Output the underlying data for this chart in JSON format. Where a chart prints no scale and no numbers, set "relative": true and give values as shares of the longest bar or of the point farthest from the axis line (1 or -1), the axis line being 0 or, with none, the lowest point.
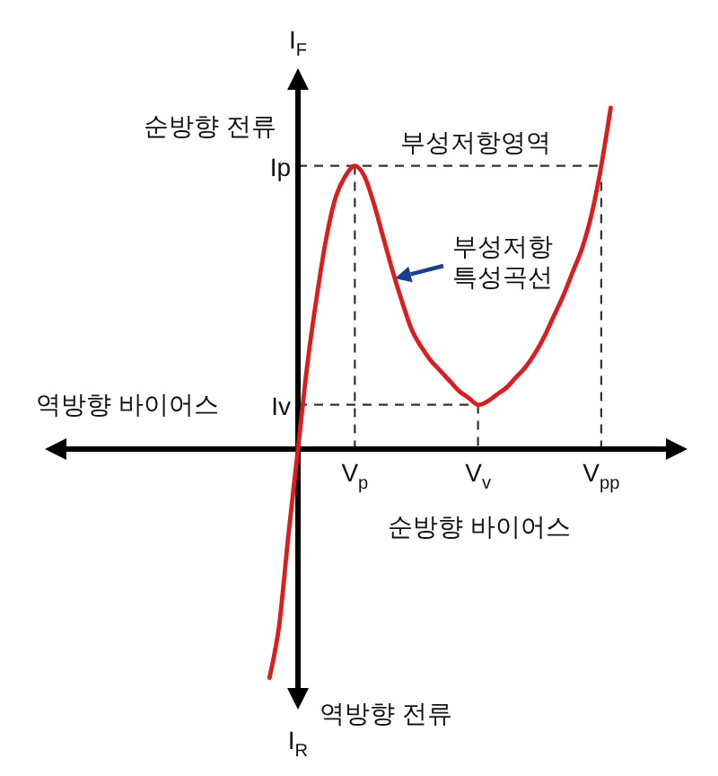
{
  "chart_data": {
    "type": "line",
    "relative": true,
    "xlabel": "순방향 바이어스",
    "ylabel": "I$_{F}$",
    "categories": [
      null,
      null,
      null,
      null,
      null,
      null,
      null,
      null,
      null,
      "V$_{p}$",
      null,
      null,
      null,
      null,
      null,
      null,
      null,
      null,
      null,
      null,
      null,
      null,
      "V$_{v}$",
      null,
      null,
      null,
      null,
      null,
      null,
      null,
      null,
      null,
      null,
      null,
      null,
      "V$_{pp}$",
      null
    ],
    "series": [
      {
        "color": "#dd1c1c",
        "line_style": "solid",
        "values": [
          -0.67,
          -0.52,
          -0.25,
          0,
          0.25,
          0.45,
          0.62,
          0.74,
          0.8,
          0.83,
          0.8,
          0.72,
          0.62,
          0.52,
          0.43,
          0.35,
          0.3,
          0.26,
          0.23,
          0.2,
          0.17,
          0.15,
          0.13,
          0.14,
          0.16,
          0.18,
          0.21,
          0.24,
          0.28,
          0.33,
          0.39,
          0.45,
          0.52,
          0.59,
          0.69,
          0.83,
          1
        ]
      },
      {
        "color": "#333333",
        "line_style": "dashed",
        "values": [
          null,
          null,
          null,
          0.83,
          0.83,
          0.83,
          0.83,
          0.83,
          0.83,
          0.83,
          0.83,
          0.83,
          0.83,
          0.83,
          0.83,
          0.83,
          0.83,
          0.83,
          0.83,
          0.83,
          0.83,
          0.83,
          0.83,
          0.83,
          0.83,
          0.83,
          0.83,
          0.83,
          0.83,
          0.83,
          0.83,
          0.83,
          0.83,
          0.83,
          0.83,
          0.83,
          null
        ]
      },
      {
        "color": "#333333",
        "line_style": "dashed",
        "values": [
          null,
          null,
          null,
          0.13,
          0.13,
          0.13,
          0.13,
          0.13,
          0.13,
          0.13,
          0.13,
          0.13,
          0.13,
          0.13,
          0.13,
          0.13,
          0.13,
          0.13,
          0.13,
          0.13,
          0.13,
          0.13,
          0.13,
          null,
          null,
          null,
          null,
          null,
          null,
          null,
          null,
          null,
          null,
          null,
          null,
          null,
          null
        ]
      },
      {
        "color": "#333333",
        "line_style": "dashed",
        "x": [
          "V$_{p}$",
          "V$_{p}$"
        ],
        "values": [
          0.83,
          0
        ]
      },
      {
        "color": "#333333",
        "line_style": "dashed",
        "x": [
          "V$_{v}$",
          "V$_{v}$"
        ],
        "values": [
          0.13,
          0
        ]
      },
      {
        "color": "#333333",
        "line_style": "dashed",
        "x": [
          "V$_{pp}$",
          "V$_{pp}$"
        ],
        "values": [
          0.83,
          0
        ]
      }
    ],
    "annotations": [
      "순방향 전류",
      "역방향 바이어스",
      "역방향 전류",
      "I$_{R}$",
      "부성저항영역",
      "부성저항\n특성곡선",
      "Ip",
      "Iv"
    ]
  }
}
